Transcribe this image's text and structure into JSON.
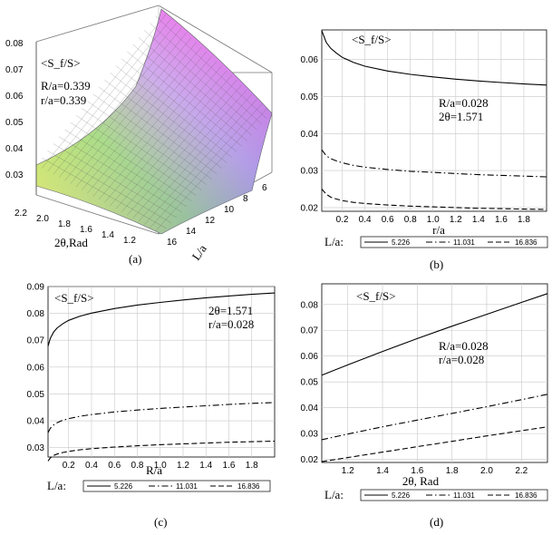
{
  "figure": {
    "captions": [
      "(a)",
      "(b)",
      "(c)",
      "(d)"
    ]
  },
  "legend": {
    "prefix": "L/a:",
    "entries": [
      "5.226",
      "11.031",
      "16.836"
    ],
    "styles": [
      "solid",
      "dashdot",
      "dashed"
    ]
  },
  "chart_data": [
    {
      "type": "surface",
      "panel": "(a)",
      "zlabel": "<S_f/S>",
      "xlabel": "2θ,Rad",
      "ylabel": "L/a",
      "annotations": [
        "R/a=0.339",
        "r/a=0.339"
      ],
      "xticks": [
        "2.2",
        "2.0",
        "1.8",
        "1.6",
        "1.4",
        "1.2"
      ],
      "yticks": [
        "16",
        "14",
        "12",
        "10",
        "8",
        "6"
      ],
      "zticks": [
        "0.03",
        "0.04",
        "0.05",
        "0.06",
        "0.07",
        "0.08"
      ],
      "colormap": [
        "#e8f250",
        "#a6e36a",
        "#c9a6ea",
        "#ea6ae8",
        "#8c8cdc"
      ]
    },
    {
      "type": "line",
      "panel": "(b)",
      "title": "<S_f/S>",
      "xlabel": "r/a",
      "annotations": [
        "R/a=0.028",
        "2θ=1.571"
      ],
      "xlim": [
        0.02,
        2.0
      ],
      "ylim": [
        0.019,
        0.068
      ],
      "xticks": [
        0.2,
        0.4,
        0.6,
        0.8,
        1.0,
        1.2,
        1.4,
        1.6,
        1.8
      ],
      "yticks": [
        0.02,
        0.03,
        0.04,
        0.05,
        0.06
      ],
      "xticklabels": [
        "0.2",
        "0.4",
        "0.6",
        "0.8",
        "1.0",
        "1.2",
        "1.4",
        "1.6",
        "1.8"
      ],
      "yticklabels": [
        "0.02",
        "0.03",
        "0.04",
        "0.05",
        "0.06"
      ],
      "x": [
        0.02,
        0.06,
        0.1,
        0.15,
        0.2,
        0.3,
        0.4,
        0.6,
        0.8,
        1.0,
        1.2,
        1.4,
        1.6,
        1.8,
        2.0
      ],
      "series": [
        {
          "name": "5.226",
          "dash": "solid",
          "values": [
            0.0678,
            0.0646,
            0.063,
            0.0617,
            0.0606,
            0.0592,
            0.0582,
            0.0569,
            0.056,
            0.0553,
            0.0547,
            0.0542,
            0.0538,
            0.0534,
            0.0531
          ]
        },
        {
          "name": "11.031",
          "dash": "dashdot",
          "values": [
            0.0356,
            0.034,
            0.0332,
            0.0326,
            0.0321,
            0.0314,
            0.0309,
            0.0303,
            0.0298,
            0.0295,
            0.0292,
            0.0289,
            0.0287,
            0.0285,
            0.0283
          ]
        },
        {
          "name": "16.836",
          "dash": "dashed",
          "values": [
            0.025,
            0.0236,
            0.0228,
            0.0223,
            0.0219,
            0.0214,
            0.0211,
            0.0207,
            0.0204,
            0.0202,
            0.02,
            0.0198,
            0.0197,
            0.0196,
            0.0195
          ]
        }
      ]
    },
    {
      "type": "line",
      "panel": "(c)",
      "title": "<S_f/S>",
      "xlabel": "R/a",
      "annotations": [
        "2θ=1.571",
        "r/a=0.028"
      ],
      "xlim": [
        0.02,
        2.0
      ],
      "ylim": [
        0.0265,
        0.09
      ],
      "xticks": [
        0.2,
        0.4,
        0.6,
        0.8,
        1.0,
        1.2,
        1.4,
        1.6,
        1.8
      ],
      "yticks": [
        0.03,
        0.04,
        0.05,
        0.06,
        0.07,
        0.08,
        0.09
      ],
      "xticklabels": [
        "0.2",
        "0.4",
        "0.6",
        "0.8",
        "1.0",
        "1.2",
        "1.4",
        "1.6",
        "1.8"
      ],
      "yticklabels": [
        "0.03",
        "0.04",
        "0.05",
        "0.06",
        "0.07",
        "0.08",
        "0.09"
      ],
      "x": [
        0.02,
        0.04,
        0.07,
        0.1,
        0.15,
        0.2,
        0.3,
        0.4,
        0.6,
        0.8,
        1.0,
        1.2,
        1.4,
        1.6,
        1.8,
        2.0
      ],
      "series": [
        {
          "name": "5.226",
          "dash": "solid",
          "values": [
            0.0678,
            0.0707,
            0.0731,
            0.0746,
            0.0762,
            0.0774,
            0.079,
            0.0801,
            0.0818,
            0.0831,
            0.0841,
            0.085,
            0.0858,
            0.0865,
            0.0871,
            0.0876
          ]
        },
        {
          "name": "11.031",
          "dash": "dashdot",
          "values": [
            0.0356,
            0.0372,
            0.0385,
            0.0393,
            0.0402,
            0.0408,
            0.0417,
            0.0423,
            0.0433,
            0.044,
            0.0446,
            0.0451,
            0.0456,
            0.0461,
            0.0465,
            0.0468
          ]
        },
        {
          "name": "16.836",
          "dash": "dashed",
          "values": [
            0.025,
            0.0262,
            0.0271,
            0.0276,
            0.0282,
            0.0286,
            0.0292,
            0.0296,
            0.0302,
            0.0307,
            0.0311,
            0.0314,
            0.0317,
            0.032,
            0.0322,
            0.0324
          ]
        }
      ]
    },
    {
      "type": "line",
      "panel": "(d)",
      "title": "<S_f/S>",
      "xlabel": "2θ, Rad",
      "annotations": [
        "R/a=0.028",
        "r/a=0.028"
      ],
      "xlim": [
        1.05,
        2.35
      ],
      "ylim": [
        0.0188,
        0.088
      ],
      "xticks": [
        1.2,
        1.4,
        1.6,
        1.8,
        2.0,
        2.2
      ],
      "yticks": [
        0.02,
        0.03,
        0.04,
        0.05,
        0.06,
        0.07,
        0.08
      ],
      "xticklabels": [
        "1.2",
        "1.4",
        "1.6",
        "1.8",
        "2.0",
        "2.2"
      ],
      "yticklabels": [
        "0.02",
        "0.03",
        "0.04",
        "0.05",
        "0.06",
        "0.07",
        "0.08"
      ],
      "x": [
        1.05,
        1.2,
        1.4,
        1.6,
        1.8,
        2.0,
        2.2,
        2.35
      ],
      "series": [
        {
          "name": "5.226",
          "dash": "solid",
          "values": [
            0.0526,
            0.0566,
            0.0618,
            0.0668,
            0.0716,
            0.0762,
            0.0808,
            0.0842
          ]
        },
        {
          "name": "11.031",
          "dash": "dashdot",
          "values": [
            0.0276,
            0.0298,
            0.0326,
            0.0352,
            0.0378,
            0.0404,
            0.0431,
            0.0452
          ]
        },
        {
          "name": "16.836",
          "dash": "dashed",
          "values": [
            0.0191,
            0.0207,
            0.0228,
            0.0249,
            0.027,
            0.0291,
            0.0311,
            0.0326
          ]
        }
      ]
    }
  ]
}
